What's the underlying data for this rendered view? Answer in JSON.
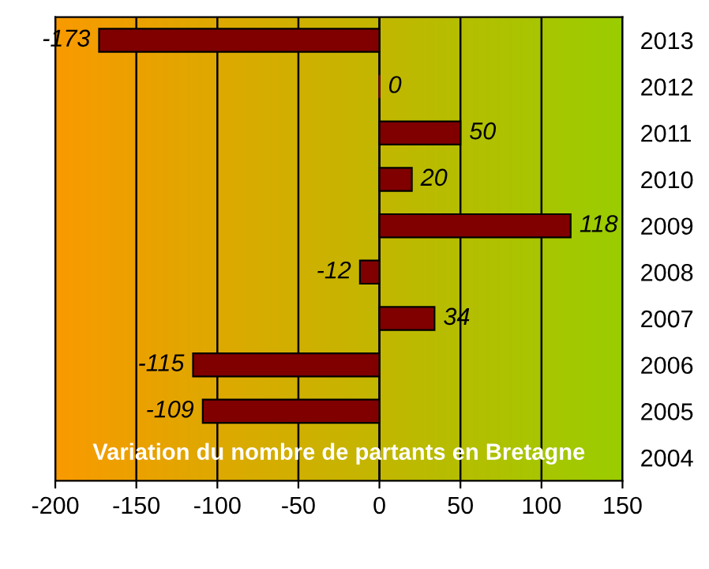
{
  "chart_data": {
    "type": "bar",
    "orientation": "horizontal",
    "title": "Variation du nombre de partants en Bretagne",
    "categories": [
      "2013",
      "2012",
      "2011",
      "2010",
      "2009",
      "2008",
      "2007",
      "2006",
      "2005",
      "2004"
    ],
    "values": [
      -173,
      0,
      50,
      20,
      118,
      -12,
      34,
      -115,
      -109,
      null
    ],
    "color": "#800000",
    "data_labels": true,
    "xlim": [
      -200,
      150
    ],
    "xticks": [
      -200,
      -150,
      -100,
      -50,
      0,
      50,
      100,
      150
    ],
    "grid": "x",
    "legend": false
  }
}
